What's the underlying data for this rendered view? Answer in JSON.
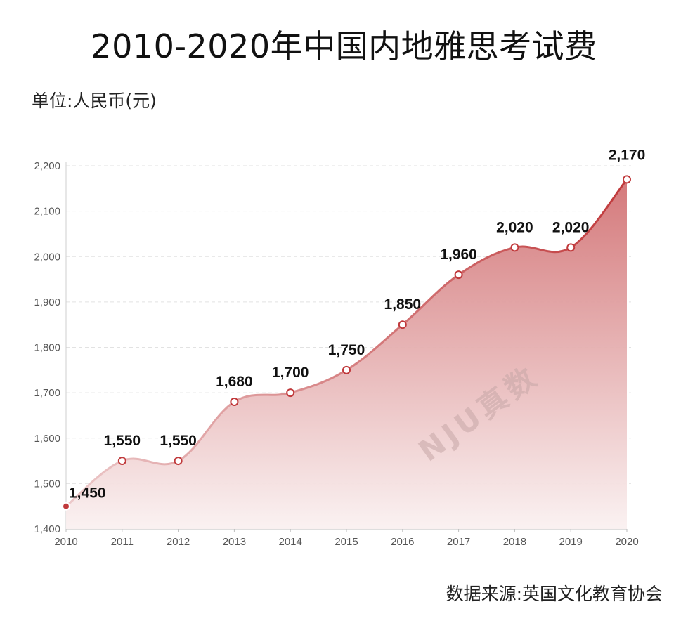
{
  "title": "2010-2020年中国内地雅思考试费",
  "unit_label": "单位:人民币(元)",
  "source_label": "数据来源:英国文化教育协会",
  "watermark": "NJU真数",
  "colors": {
    "line": "#c0393b",
    "area_top": "#d27274",
    "area_bottom": "#faf1f1",
    "grid": "#e2e2e2",
    "marker_fill": "#ffffff",
    "marker_stroke": "#c0393b"
  },
  "chart_data": {
    "type": "area",
    "title": "2010-2020年中国内地雅思考试费",
    "xlabel": "",
    "ylabel": "单位:人民币(元)",
    "x": [
      "2010",
      "2011",
      "2012",
      "2013",
      "2014",
      "2015",
      "2016",
      "2017",
      "2018",
      "2019",
      "2020"
    ],
    "values": [
      1450,
      1550,
      1550,
      1680,
      1700,
      1750,
      1850,
      1960,
      2020,
      2020,
      2170
    ],
    "data_labels": [
      "1,450",
      "1,550",
      "1,550",
      "1,680",
      "1,700",
      "1,750",
      "1,850",
      "1,960",
      "2,020",
      "2,020",
      "2,170"
    ],
    "yticks": [
      1400,
      1500,
      1600,
      1700,
      1800,
      1900,
      2000,
      2100,
      2200
    ],
    "ytick_labels": [
      "1,400",
      "1,500",
      "1,600",
      "1,700",
      "1,800",
      "1,900",
      "2,000",
      "2,100",
      "2,200"
    ],
    "ylim": [
      1400,
      2200
    ],
    "grid": true,
    "smooth": true
  }
}
